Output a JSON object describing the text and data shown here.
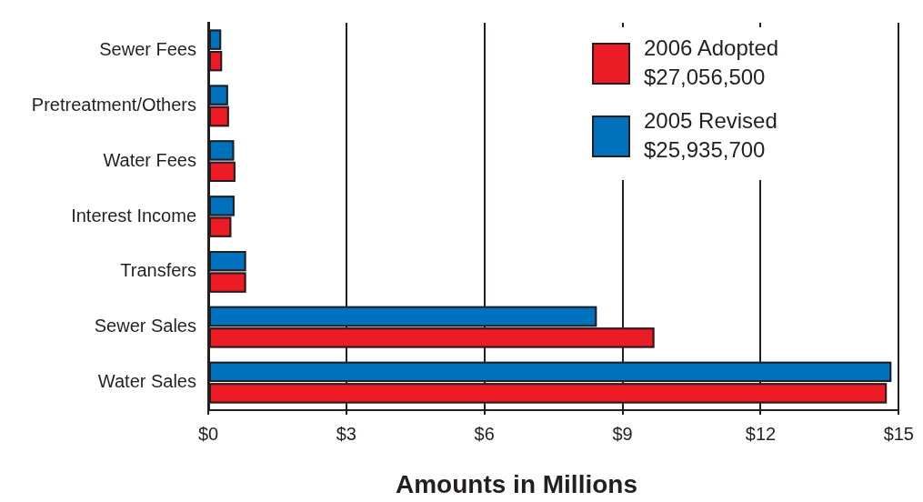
{
  "chart_data": {
    "type": "bar",
    "orientation": "horizontal",
    "xlabel": "Amounts in Millions",
    "categories": [
      "Sewer Fees",
      "Pretreatment/Others",
      "Water Fees",
      "Interest Income",
      "Transfers",
      "Sewer Sales",
      "Water Sales"
    ],
    "series": [
      {
        "name": "2006 Adopted $27,056,500",
        "color": "#ed1c24",
        "values": [
          0.3,
          0.45,
          0.59,
          0.5,
          0.82,
          9.69,
          14.74
        ]
      },
      {
        "name": "2005 Revised $25,935,700",
        "color": "#0071bc",
        "values": [
          0.28,
          0.43,
          0.56,
          0.57,
          0.82,
          8.44,
          14.84
        ]
      }
    ],
    "xlim": [
      0,
      15
    ],
    "xticks": [
      {
        "value": 0,
        "label": "$0"
      },
      {
        "value": 3,
        "label": "$3"
      },
      {
        "value": 6,
        "label": "$6"
      },
      {
        "value": 9,
        "label": "$9"
      },
      {
        "value": 12,
        "label": "$12"
      },
      {
        "value": 15,
        "label": "$15"
      }
    ],
    "grid": "x",
    "legend": "top right"
  }
}
